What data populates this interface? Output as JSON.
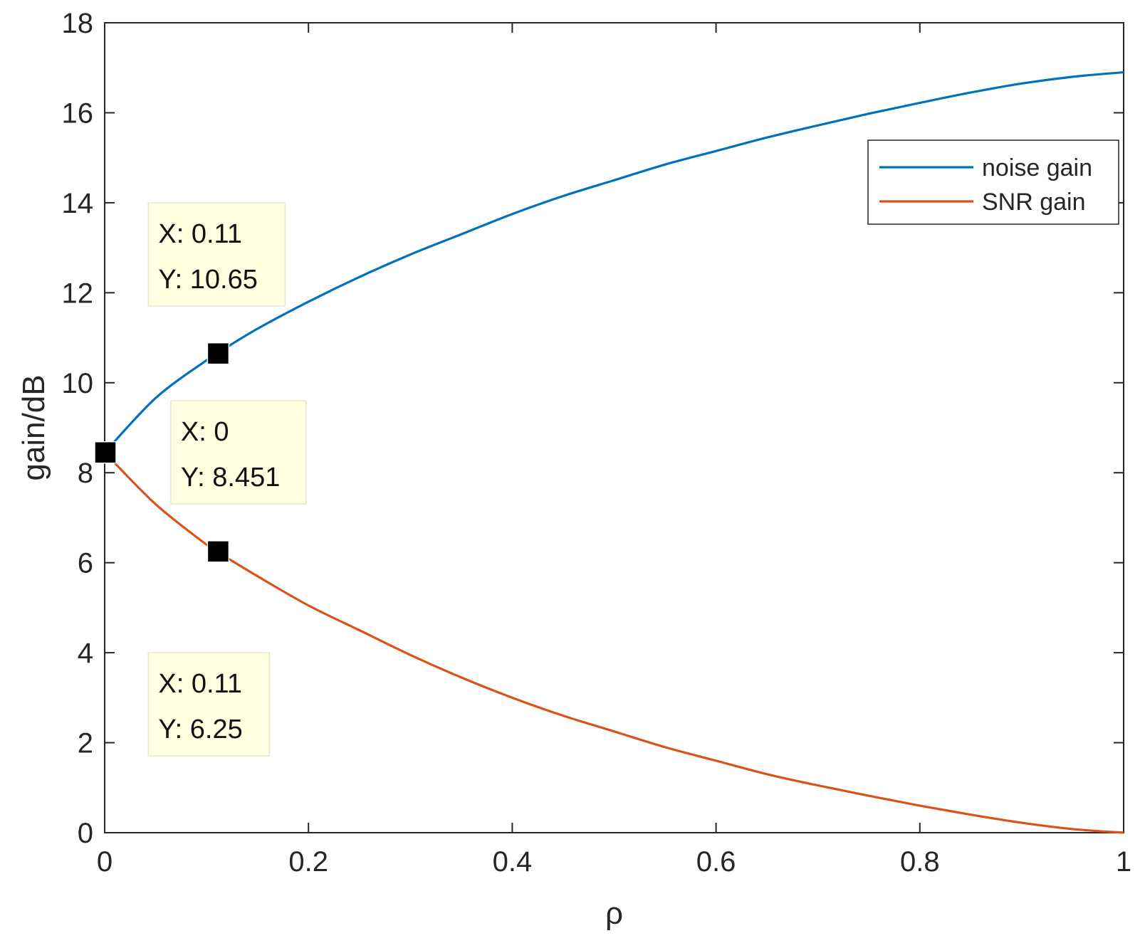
{
  "chart_data": {
    "type": "line",
    "title": "",
    "xlabel": "ρ",
    "ylabel": "gain/dB",
    "xlim": [
      0,
      1
    ],
    "ylim": [
      0,
      18
    ],
    "x_ticks": [
      0,
      0.2,
      0.4,
      0.6,
      0.8,
      1
    ],
    "x_tick_labels": [
      "0",
      "0.2",
      "0.4",
      "0.6",
      "0.8",
      "1"
    ],
    "y_ticks": [
      0,
      2,
      4,
      6,
      8,
      10,
      12,
      14,
      16,
      18
    ],
    "y_tick_labels": [
      "0",
      "2",
      "4",
      "6",
      "8",
      "10",
      "12",
      "14",
      "16",
      "18"
    ],
    "grid": false,
    "legend_position": "top-right",
    "x": [
      0,
      0.05,
      0.1,
      0.11,
      0.15,
      0.2,
      0.25,
      0.3,
      0.35,
      0.4,
      0.45,
      0.5,
      0.55,
      0.6,
      0.65,
      0.7,
      0.75,
      0.8,
      0.85,
      0.9,
      0.95,
      1
    ],
    "series": [
      {
        "name": "noise gain",
        "color": "#0072BD",
        "values": [
          8.45,
          9.66,
          10.5,
          10.65,
          11.2,
          11.8,
          12.35,
          12.85,
          13.3,
          13.75,
          14.15,
          14.5,
          14.85,
          15.15,
          15.45,
          15.72,
          15.98,
          16.22,
          16.45,
          16.65,
          16.8,
          16.9
        ]
      },
      {
        "name": "SNR gain",
        "color": "#D95319",
        "values": [
          8.45,
          7.3,
          6.4,
          6.25,
          5.7,
          5.05,
          4.5,
          3.95,
          3.45,
          3.0,
          2.6,
          2.25,
          1.9,
          1.6,
          1.3,
          1.05,
          0.82,
          0.6,
          0.4,
          0.22,
          0.08,
          0
        ]
      }
    ],
    "annotations": [
      {
        "x": 0.11,
        "y": 10.65,
        "x_text": "X: 0.11",
        "y_text": "Y: 10.65"
      },
      {
        "x": 0,
        "y": 8.451,
        "x_text": "X: 0",
        "y_text": "Y: 8.451"
      },
      {
        "x": 0.11,
        "y": 6.25,
        "x_text": "X: 0.11",
        "y_text": "Y: 6.25"
      }
    ],
    "annotation_box_color": "#FFFFE1",
    "marker_color": "#000000"
  }
}
